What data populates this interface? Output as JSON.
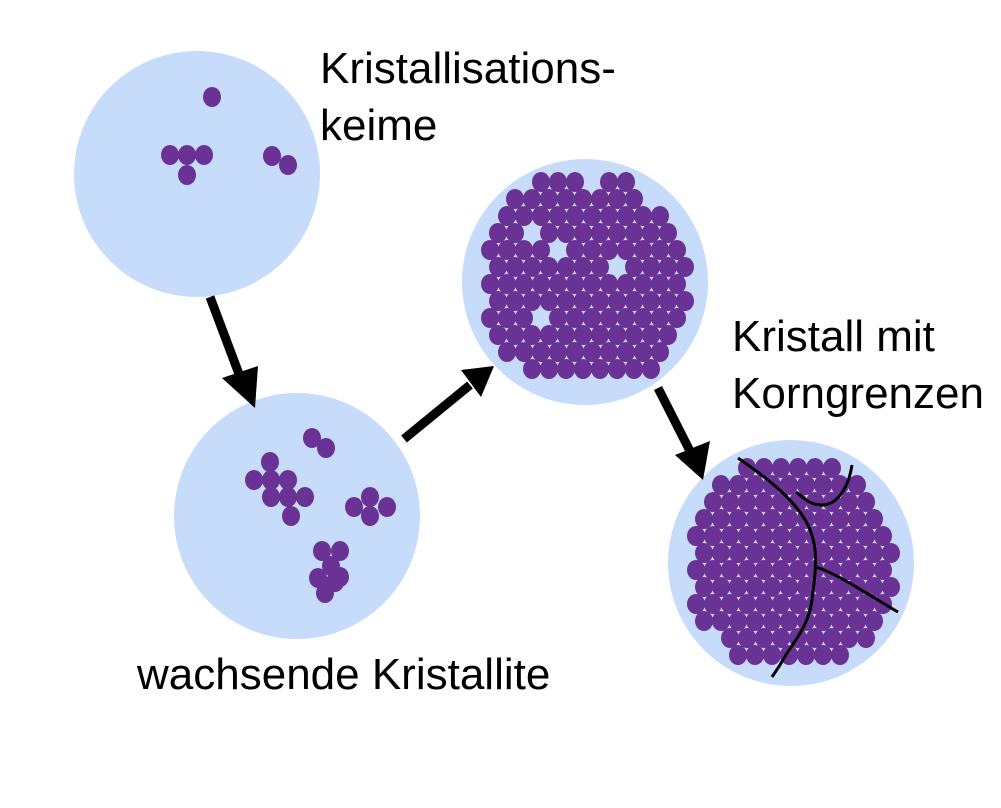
{
  "colors": {
    "background": "#ffffff",
    "circle_fill": "#c6dcfa",
    "atom_fill": "#6a3294",
    "arrow": "#000000",
    "text": "#000000"
  },
  "stages": [
    {
      "label_lines": [
        "Kristallisations-",
        "keime"
      ]
    },
    {
      "label_lines": []
    },
    {
      "label_lines": []
    },
    {
      "label_lines": [
        "Kristall mit",
        "Korngrenzen"
      ]
    }
  ],
  "caption": "wachsende Kristallite"
}
